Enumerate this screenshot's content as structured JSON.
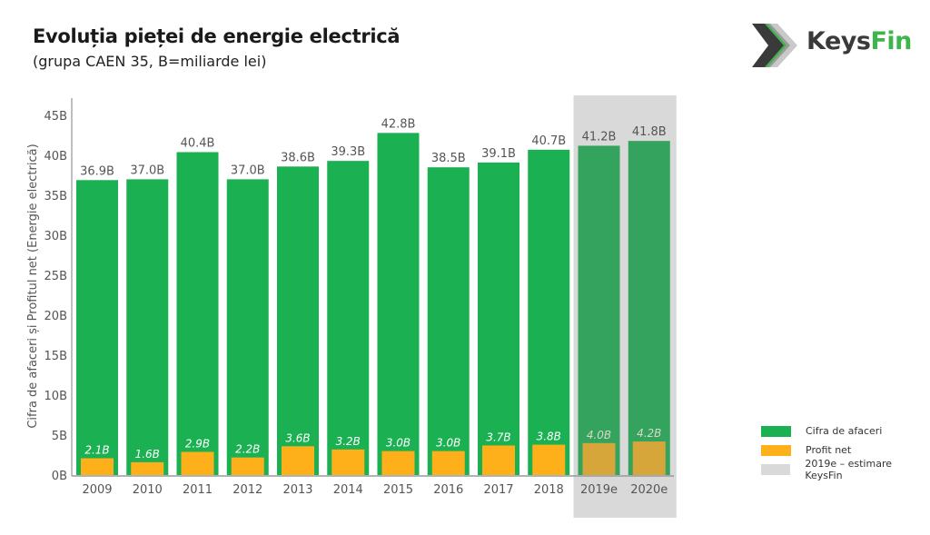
{
  "header": {
    "title": "Evoluția pieței de energie electrică",
    "subtitle": "(grupa CAEN 35, B=miliarde lei)"
  },
  "logo": {
    "part1": "Keys",
    "part2": "Fin"
  },
  "colors": {
    "revenue": "#1bb152",
    "revenue_est": "#33a35d",
    "profit": "#fdb01a",
    "profit_est": "#d6a63a",
    "estimate_band": "#d9d9d9",
    "label_on_bar": "#ffffff",
    "label_est": "#d8d8c8"
  },
  "chart_data": {
    "type": "bar",
    "title": "Evoluția pieței de energie electrică",
    "subtitle": "(grupa CAEN 35, B=miliarde lei)",
    "xlabel": "",
    "ylabel": "Cifra de afaceri și Profitul net (Energie electrică)",
    "ylim": [
      0,
      45
    ],
    "yticks": [
      0,
      5,
      10,
      15,
      20,
      25,
      30,
      35,
      40,
      45
    ],
    "ytick_labels": [
      "0B",
      "5B",
      "10B",
      "15B",
      "20B",
      "25B",
      "30B",
      "35B",
      "40B",
      "45B"
    ],
    "grid": false,
    "categories": [
      "2009",
      "2010",
      "2011",
      "2012",
      "2013",
      "2014",
      "2015",
      "2016",
      "2017",
      "2018",
      "2019e",
      "2020e"
    ],
    "estimated_categories": [
      "2019e",
      "2020e"
    ],
    "series": [
      {
        "name": "Cifra de afaceri",
        "values": [
          36.9,
          37.0,
          40.4,
          37.0,
          38.6,
          39.3,
          42.8,
          38.5,
          39.1,
          40.7,
          41.2,
          41.8
        ],
        "labels": [
          "36.9B",
          "37.0B",
          "40.4B",
          "37.0B",
          "38.6B",
          "39.3B",
          "42.8B",
          "38.5B",
          "39.1B",
          "40.7B",
          "41.2B",
          "41.8B"
        ]
      },
      {
        "name": "Profit net",
        "values": [
          2.1,
          1.6,
          2.9,
          2.2,
          3.6,
          3.2,
          3.0,
          3.0,
          3.7,
          3.8,
          4.0,
          4.2
        ],
        "labels": [
          "2.1B",
          "1.6B",
          "2.9B",
          "2.2B",
          "3.6B",
          "3.2B",
          "3.0B",
          "3.0B",
          "3.7B",
          "3.8B",
          "4.0B",
          "4.2B"
        ]
      }
    ],
    "legend": {
      "position": "bottom-right",
      "entries": [
        "Cifra de afaceri",
        "Profit net",
        "2019e – estimare KeysFin"
      ]
    }
  }
}
